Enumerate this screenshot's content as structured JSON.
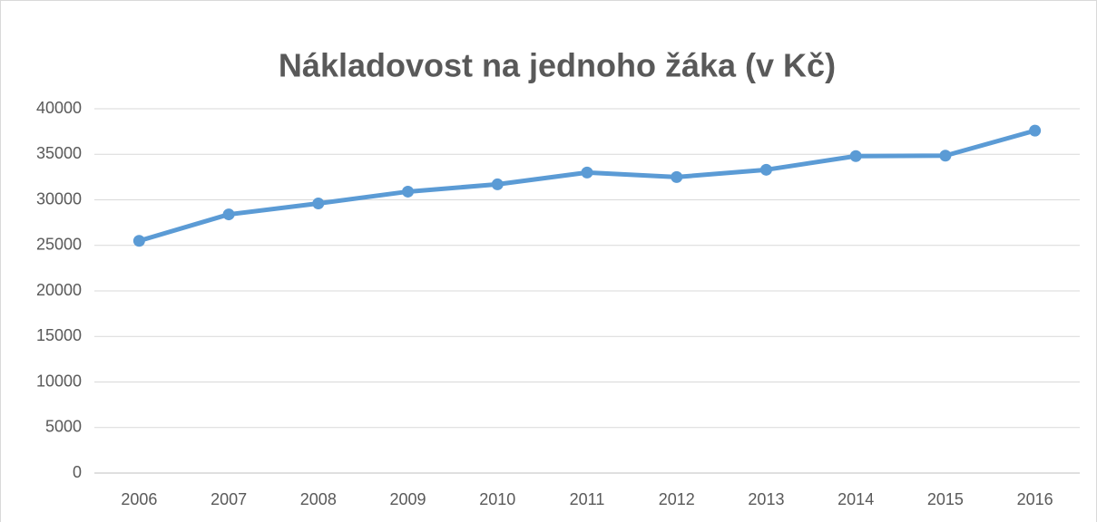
{
  "chart_data": {
    "type": "line",
    "title": "Nákladovost na jednoho žáka (v Kč)",
    "categories": [
      "2006",
      "2007",
      "2008",
      "2009",
      "2010",
      "2011",
      "2012",
      "2013",
      "2014",
      "2015",
      "2016"
    ],
    "series": [
      {
        "name": "Nákladovost na jednoho žáka",
        "color": "#5b9bd5",
        "values": [
          25500,
          28400,
          29600,
          30900,
          31700,
          33000,
          32500,
          33300,
          34800,
          34850,
          37600
        ]
      }
    ],
    "ylim": [
      0,
      40000
    ],
    "yticks": [
      0,
      5000,
      10000,
      15000,
      20000,
      25000,
      30000,
      35000,
      40000
    ],
    "grid": true
  }
}
